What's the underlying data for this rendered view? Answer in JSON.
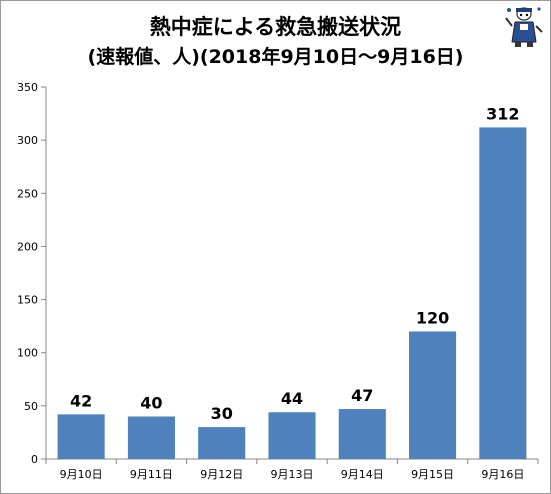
{
  "chart_data": {
    "type": "bar",
    "title": "熱中症による救急搬送状況",
    "subtitle": "(速報値、人)(2018年9月10日〜9月16日)",
    "categories": [
      "9月10日",
      "9月11日",
      "9月12日",
      "9月13日",
      "9月14日",
      "9月15日",
      "9月16日"
    ],
    "values": [
      42,
      40,
      30,
      44,
      47,
      120,
      312
    ],
    "data_labels": [
      "42",
      "40",
      "30",
      "44",
      "47",
      "120",
      "312"
    ],
    "ylim": [
      0,
      350
    ],
    "yticks": [
      0,
      50,
      100,
      150,
      200,
      250,
      300,
      350
    ],
    "ytick_labels": [
      "0",
      "50",
      "100",
      "150",
      "200",
      "250",
      "300",
      "350"
    ],
    "xlabel": "",
    "ylabel": "",
    "grid": false,
    "bar_color": "#4f81bd"
  },
  "mascot_icon": "mascot-icon"
}
